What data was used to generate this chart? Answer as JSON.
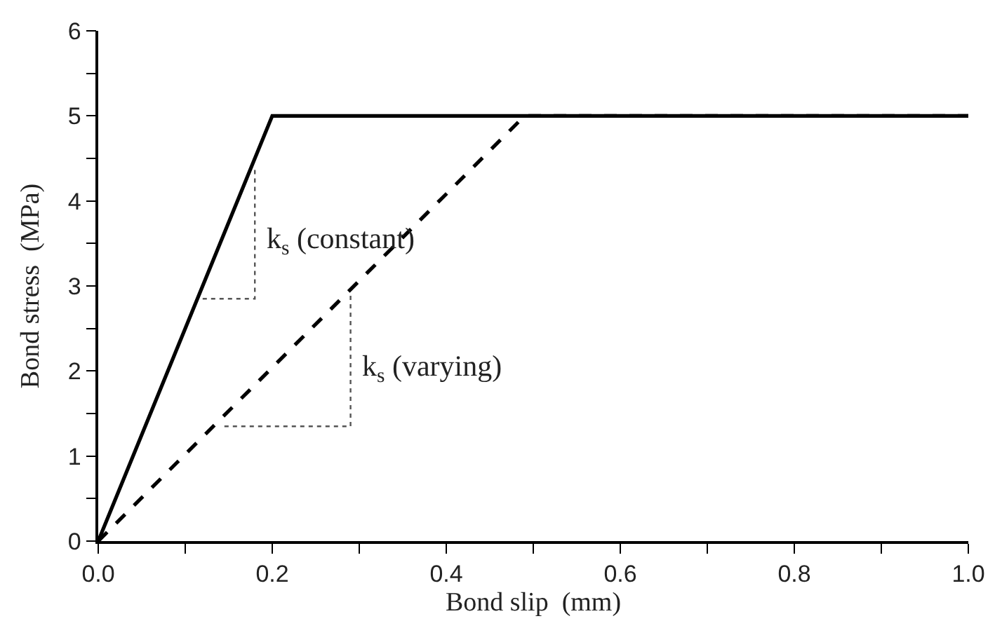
{
  "chart_data": {
    "type": "line",
    "xlabel": "Bond slip  (mm)",
    "ylabel": "Bond stress  (MPa)",
    "xlim": [
      0,
      1.0
    ],
    "ylim": [
      0,
      6
    ],
    "xticks": [
      {
        "value": 0,
        "label": "0.0"
      },
      {
        "value": 0.1,
        "label": null
      },
      {
        "value": 0.2,
        "label": "0.2"
      },
      {
        "value": 0.3,
        "label": null
      },
      {
        "value": 0.4,
        "label": "0.4"
      },
      {
        "value": 0.5,
        "label": null
      },
      {
        "value": 0.6,
        "label": "0.6"
      },
      {
        "value": 0.7,
        "label": null
      },
      {
        "value": 0.8,
        "label": "0.8"
      },
      {
        "value": 0.9,
        "label": null
      },
      {
        "value": 1.0,
        "label": "1.0"
      }
    ],
    "yticks": [
      0,
      {
        "value": 0.5,
        "label": null
      },
      1,
      {
        "value": 1.5,
        "label": null
      },
      2,
      {
        "value": 2.5,
        "label": null
      },
      3,
      {
        "value": 3.5,
        "label": null
      },
      4,
      {
        "value": 4.5,
        "label": null
      },
      5,
      {
        "value": 5.5,
        "label": null
      },
      6
    ],
    "marker": "none",
    "series": [
      {
        "x": [
          0,
          0.2,
          1.0
        ],
        "values": [
          0,
          5,
          5
        ],
        "color": "#000000",
        "line_style": "solid"
      },
      {
        "x": [
          0,
          0.49,
          1.0
        ],
        "values": [
          0,
          5,
          5
        ],
        "color": "#000000",
        "line_style": "dashed"
      },
      {
        "x": [
          0.12,
          0.18,
          0.18
        ],
        "values": [
          2.85,
          2.85,
          4.4
        ],
        "color": "#555555",
        "line_style": "dotted"
      },
      {
        "x": [
          0.145,
          0.29,
          0.29
        ],
        "values": [
          1.35,
          1.35,
          2.9
        ],
        "color": "#555555",
        "line_style": "dotted"
      }
    ],
    "annotations": [
      "k$_{s}$ (constant)",
      "k$_{s}$ (varying)"
    ]
  }
}
